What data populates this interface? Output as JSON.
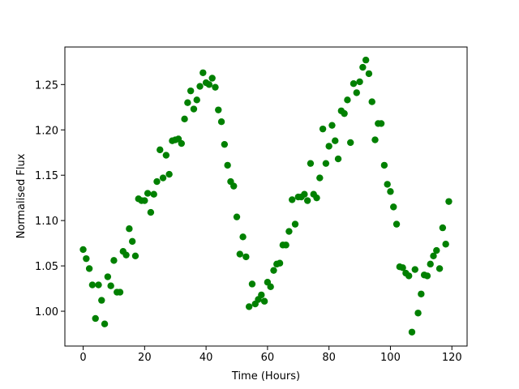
{
  "chart_data": {
    "type": "scatter",
    "xlabel": "Time (Hours)",
    "ylabel": "Normalised Flux",
    "color": "#008000",
    "x": [
      0,
      1,
      2,
      3,
      4,
      5,
      6,
      7,
      8,
      9,
      10,
      11,
      12,
      13,
      14,
      15,
      16,
      17,
      18,
      19,
      20,
      21,
      22,
      23,
      24,
      25,
      26,
      27,
      28,
      29,
      30,
      31,
      32,
      33,
      34,
      35,
      36,
      37,
      38,
      39,
      40,
      41,
      42,
      43,
      44,
      45,
      46,
      47,
      48,
      49,
      50,
      51,
      52,
      53,
      54,
      55,
      56,
      57,
      58,
      59,
      60,
      61,
      62,
      63,
      64,
      65,
      66,
      67,
      68,
      69,
      70,
      71,
      72,
      73,
      74,
      75,
      76,
      77,
      78,
      79,
      80,
      81,
      82,
      83,
      84,
      85,
      86,
      87,
      88,
      89,
      90,
      91,
      92,
      93,
      94,
      95,
      96,
      97,
      98,
      99,
      100,
      101,
      102,
      103,
      104,
      105,
      106,
      107,
      108,
      109,
      110,
      111,
      112,
      113,
      114,
      115,
      116,
      117,
      118,
      119
    ],
    "values": [
      1.068,
      1.058,
      1.047,
      1.029,
      0.992,
      1.029,
      1.012,
      0.986,
      1.038,
      1.028,
      1.056,
      1.021,
      1.021,
      1.066,
      1.062,
      1.091,
      1.077,
      1.061,
      1.124,
      1.122,
      1.122,
      1.13,
      1.109,
      1.129,
      1.143,
      1.178,
      1.147,
      1.172,
      1.151,
      1.188,
      1.189,
      1.19,
      1.185,
      1.212,
      1.23,
      1.243,
      1.223,
      1.233,
      1.248,
      1.263,
      1.252,
      1.25,
      1.257,
      1.247,
      1.222,
      1.209,
      1.184,
      1.161,
      1.143,
      1.138,
      1.104,
      1.063,
      1.082,
      1.06,
      1.005,
      1.03,
      1.008,
      1.013,
      1.018,
      1.011,
      1.032,
      1.027,
      1.045,
      1.052,
      1.053,
      1.073,
      1.073,
      1.088,
      1.123,
      1.096,
      1.126,
      1.126,
      1.129,
      1.122,
      1.163,
      1.129,
      1.125,
      1.147,
      1.201,
      1.163,
      1.182,
      1.205,
      1.188,
      1.168,
      1.221,
      1.218,
      1.233,
      1.186,
      1.251,
      1.241,
      1.253,
      1.269,
      1.277,
      1.262,
      1.231,
      1.189,
      1.207,
      1.207,
      1.161,
      1.14,
      1.132,
      1.115,
      1.096,
      1.049,
      1.048,
      1.042,
      1.039,
      0.977,
      1.046,
      0.998,
      1.019,
      1.04,
      1.039,
      1.052,
      1.061,
      1.067,
      1.047,
      1.092,
      1.074,
      1.121
    ],
    "xlim": [
      -5.95,
      124.95
    ],
    "ylim": [
      0.9616,
      1.2914
    ],
    "xticks": [
      0,
      20,
      40,
      60,
      80,
      100,
      120
    ],
    "yticks": [
      {
        "value": 1.0,
        "label": "1.00"
      },
      {
        "value": 1.05,
        "label": "1.05"
      },
      {
        "value": 1.1,
        "label": "1.10"
      },
      {
        "value": 1.15,
        "label": "1.15"
      },
      {
        "value": 1.2,
        "label": "1.20"
      },
      {
        "value": 1.25,
        "label": "1.25"
      }
    ]
  }
}
